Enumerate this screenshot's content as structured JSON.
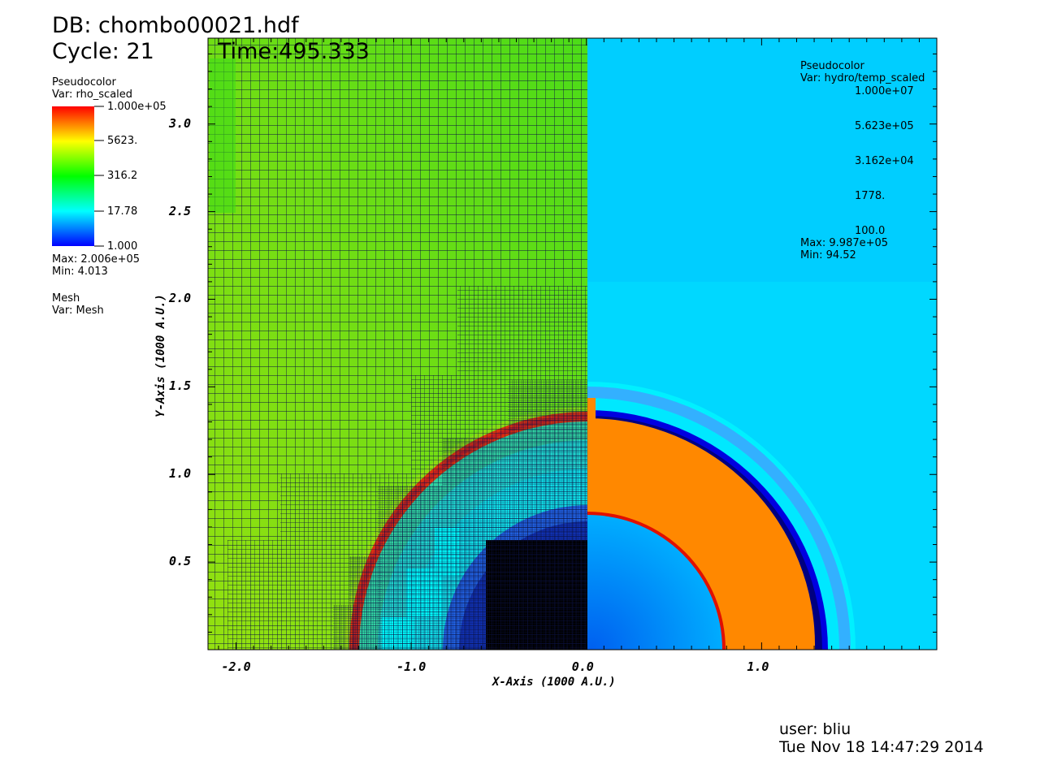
{
  "header": {
    "db": "DB: chombo00021.hdf",
    "cycle": "Cycle: 21",
    "time": "Time:495.333"
  },
  "legend_left": {
    "plot": "Pseudocolor",
    "var": "Var: rho_scaled",
    "ticks": [
      "1.000e+05",
      "5623.",
      "316.2",
      "17.78",
      "1.000"
    ],
    "max": "Max:  2.006e+05",
    "min": "Min:  4.013",
    "mesh_plot": "Mesh",
    "mesh_var": "Var: Mesh",
    "colors": [
      "#ff0000",
      "#ffff00",
      "#00ff00",
      "#00ffff",
      "#0000ff"
    ]
  },
  "legend_right": {
    "plot": "Pseudocolor",
    "var": "Var: hydro/temp_scaled",
    "ticks": [
      "1.000e+07",
      "5.623e+05",
      "3.162e+04",
      "1778.",
      "100.0"
    ],
    "max": "Max:  9.987e+05",
    "min": "Min:  94.52",
    "colors": [
      "#ffff00",
      "#ff8000",
      "#ff0000",
      "#000080",
      "#0000ff",
      "#00ffff",
      "#ffffff"
    ]
  },
  "footer": {
    "user": "user: bliu",
    "date": "Tue Nov 18 14:47:29 2014"
  },
  "chart_data": {
    "type": "heatmap",
    "xlabel": "X-Axis (1000 A.U.)",
    "ylabel": "Y-Axis (1000 A.U.)",
    "xlim": [
      -2.16,
      2.0
    ],
    "ylim": [
      0.0,
      3.49
    ],
    "x_ticks": [
      -2.0,
      -1.0,
      0.0,
      1.0
    ],
    "x_tick_labels": [
      "-2.0",
      "-1.0",
      "0.0",
      "1.0"
    ],
    "y_ticks": [
      0.5,
      1.0,
      1.5,
      2.0,
      2.5,
      3.0
    ],
    "y_tick_labels": [
      "0.5",
      "1.0",
      "1.5",
      "2.0",
      "2.5",
      "3.0"
    ],
    "left_panel": "rho_scaled with mesh",
    "right_panel": "hydro/temp_scaled",
    "shell_inner_radius": 0.78,
    "shell_outer_radius": 1.27,
    "left_shock_radius": 1.4
  }
}
